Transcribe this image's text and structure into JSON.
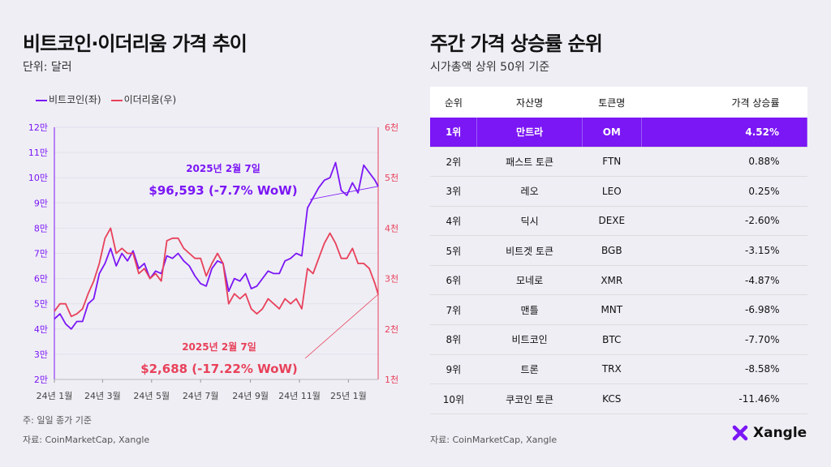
{
  "left": {
    "title": "비트코인·이더리움 가격 추이",
    "subtitle": "단위: 달러",
    "legend": [
      "비트코인(좌)",
      "이더리움(우)"
    ],
    "note": "주: 일일 종가 기준",
    "source": "자료: CoinMarketCap, Xangle"
  },
  "right": {
    "title": "주간 가격 상승률 순위",
    "subtitle": "시가총액 상위 50위 기준",
    "source": "자료: CoinMarketCap, Xangle",
    "headers": [
      "순위",
      "자산명",
      "토큰명",
      "가격 상승률"
    ],
    "rows": [
      [
        "1위",
        "만트라",
        "OM",
        "4.52%"
      ],
      [
        "2위",
        "패스트 토큰",
        "FTN",
        "0.88%"
      ],
      [
        "3위",
        "레오",
        "LEO",
        "0.25%"
      ],
      [
        "4위",
        "딕시",
        "DEXE",
        "-2.60%"
      ],
      [
        "5위",
        "비트겟 토큰",
        "BGB",
        "-3.15%"
      ],
      [
        "6위",
        "모네로",
        "XMR",
        "-4.87%"
      ],
      [
        "7위",
        "맨틀",
        "MNT",
        "-6.98%"
      ],
      [
        "8위",
        "비트코인",
        "BTC",
        "-7.70%"
      ],
      [
        "9위",
        "트론",
        "TRX",
        "-8.58%"
      ],
      [
        "10위",
        "쿠코인 토큰",
        "KCS",
        "-11.46%"
      ]
    ]
  },
  "brand": {
    "name": "Xangle",
    "accent": "#7b16f5"
  },
  "chart_data": {
    "type": "line",
    "xlabel": "",
    "ylabel": "",
    "x_ticks": [
      "24년 1월",
      "24년 3월",
      "24년 5월",
      "24년 7월",
      "24년 9월",
      "24년 11월",
      "25년 1월"
    ],
    "x_tick_dates": [
      "2024-01-01",
      "2024-03-01",
      "2024-05-01",
      "2024-07-01",
      "2024-09-01",
      "2024-11-01",
      "2025-01-01"
    ],
    "xlim": [
      "2024-01-01",
      "2025-02-07"
    ],
    "y_left": {
      "lim": [
        20000,
        120000
      ],
      "ticks": [
        "2만",
        "3만",
        "4만",
        "5만",
        "6만",
        "7만",
        "8만",
        "9만",
        "10만",
        "11만",
        "12만"
      ],
      "color": "#7b16f5"
    },
    "y_right": {
      "lim": [
        1000,
        6000
      ],
      "ticks": [
        "1천",
        "2천",
        "3천",
        "4천",
        "5천",
        "6천"
      ],
      "color": "#e8415a"
    },
    "grid": true,
    "legend": "top-left",
    "x": [
      "2024-01-01",
      "2024-01-08",
      "2024-01-15",
      "2024-01-22",
      "2024-01-29",
      "2024-02-05",
      "2024-02-12",
      "2024-02-19",
      "2024-02-26",
      "2024-03-04",
      "2024-03-11",
      "2024-03-18",
      "2024-03-25",
      "2024-04-01",
      "2024-04-08",
      "2024-04-15",
      "2024-04-22",
      "2024-04-29",
      "2024-05-06",
      "2024-05-13",
      "2024-05-20",
      "2024-05-27",
      "2024-06-03",
      "2024-06-10",
      "2024-06-17",
      "2024-06-24",
      "2024-07-01",
      "2024-07-08",
      "2024-07-15",
      "2024-07-22",
      "2024-07-29",
      "2024-08-05",
      "2024-08-12",
      "2024-08-19",
      "2024-08-26",
      "2024-09-02",
      "2024-09-09",
      "2024-09-16",
      "2024-09-23",
      "2024-09-30",
      "2024-10-07",
      "2024-10-14",
      "2024-10-21",
      "2024-10-28",
      "2024-11-04",
      "2024-11-11",
      "2024-11-18",
      "2024-11-25",
      "2024-12-02",
      "2024-12-09",
      "2024-12-16",
      "2024-12-23",
      "2024-12-30",
      "2025-01-06",
      "2025-01-13",
      "2025-01-20",
      "2025-01-27",
      "2025-02-03",
      "2025-02-07"
    ],
    "series": [
      {
        "name": "비트코인(좌)",
        "axis": "left",
        "color": "#7b16f5",
        "values": [
          44000,
          46000,
          42000,
          40000,
          43000,
          43000,
          50000,
          52000,
          62000,
          66000,
          72000,
          65000,
          70000,
          67000,
          71000,
          64000,
          66000,
          60000,
          63000,
          62000,
          69000,
          68000,
          70000,
          67000,
          65000,
          61000,
          58000,
          57000,
          64000,
          67000,
          66000,
          55000,
          60000,
          59000,
          62000,
          56000,
          57000,
          60000,
          63000,
          62000,
          62000,
          67000,
          68000,
          70000,
          69000,
          88000,
          92000,
          96000,
          99000,
          100000,
          106000,
          95000,
          93000,
          98000,
          94000,
          105000,
          102000,
          99000,
          96593
        ]
      },
      {
        "name": "이더리움(우)",
        "axis": "right",
        "color": "#e8415a",
        "values": [
          2350,
          2500,
          2500,
          2250,
          2300,
          2400,
          2700,
          2950,
          3300,
          3800,
          4000,
          3500,
          3600,
          3500,
          3500,
          3100,
          3200,
          3000,
          3100,
          2950,
          3750,
          3800,
          3800,
          3600,
          3500,
          3400,
          3400,
          3050,
          3300,
          3500,
          3300,
          2500,
          2700,
          2600,
          2700,
          2400,
          2300,
          2400,
          2600,
          2500,
          2400,
          2600,
          2500,
          2600,
          2400,
          3200,
          3100,
          3400,
          3700,
          3900,
          3700,
          3400,
          3400,
          3600,
          3300,
          3300,
          3200,
          2900,
          2688
        ]
      }
    ],
    "annotations": [
      {
        "series": "비트코인(좌)",
        "date": "2025년 2월 7일",
        "value": "$96,593 (-7.7% WoW)"
      },
      {
        "series": "이더리움(우)",
        "date": "2025년 2월 7일",
        "value": "$2,688 (-17.22% WoW)"
      }
    ]
  }
}
